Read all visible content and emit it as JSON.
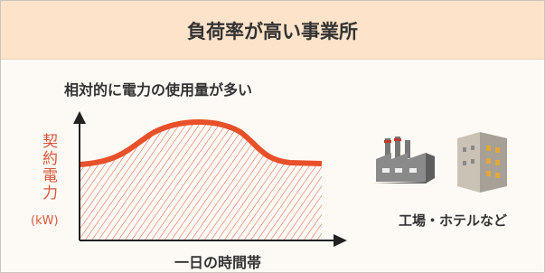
{
  "header": {
    "title": "負荷率が高い事業所"
  },
  "diagram": {
    "subtitle": "相対的に電力の使用量が多い",
    "y_axis_label": "契約電力",
    "y_axis_unit": "(kW)",
    "x_axis_label": "一日の時間帯",
    "caption": "工場・ホテルなど"
  }
}
